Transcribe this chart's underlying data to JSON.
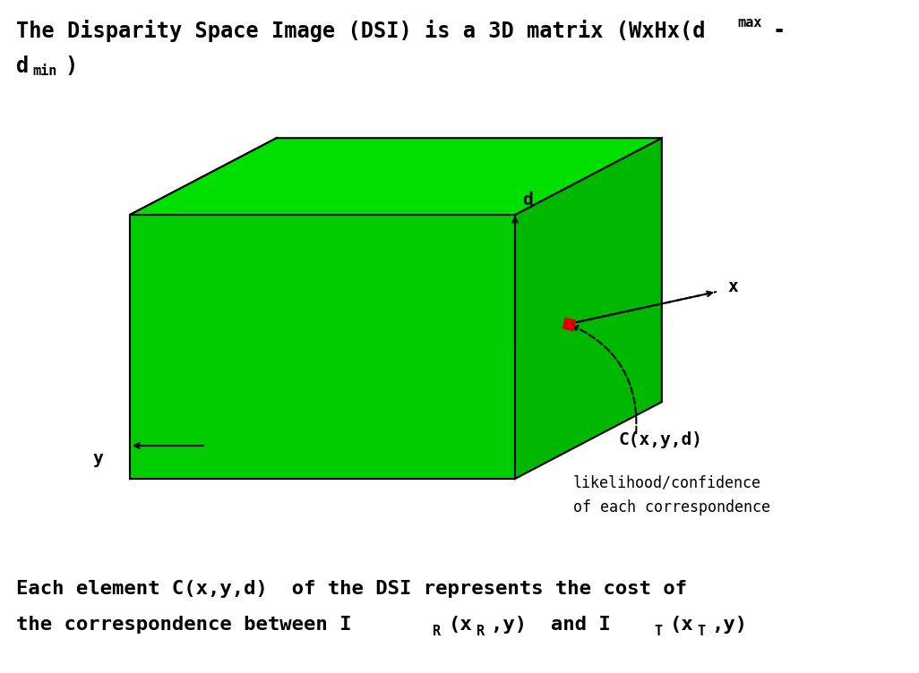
{
  "background_color": "#ffffff",
  "box_face_front": "#00cc00",
  "box_face_right": "#00b800",
  "box_face_top": "#00e000",
  "box_edge_color": "#000000",
  "axis_color": "#000000",
  "red_marker_color": "#dd0000",
  "label_d": "d",
  "label_x": "x",
  "label_y": "y",
  "label_C": "C(x,y,d)",
  "label_likelihood": "likelihood/confidence",
  "label_each_corr": "of each correspondence",
  "title1": "The Disparity Space Image (DSI) is a 3D matrix (WxHx(d",
  "title1_sup": "max",
  "title1_dash": "-",
  "title2_d": "d",
  "title2_sub": "min",
  "title2_close": ")",
  "bot1": "Each element C(x,y,d)  of the DSI represents the cost of",
  "bot2a": "the correspondence between I",
  "bot2b": "R",
  "bot2c": "(x",
  "bot2d": "R",
  "bot2e": ",y)  and I",
  "bot2f": "T",
  "bot2g": "(x",
  "bot2h": "T",
  "bot2i": ",y)"
}
